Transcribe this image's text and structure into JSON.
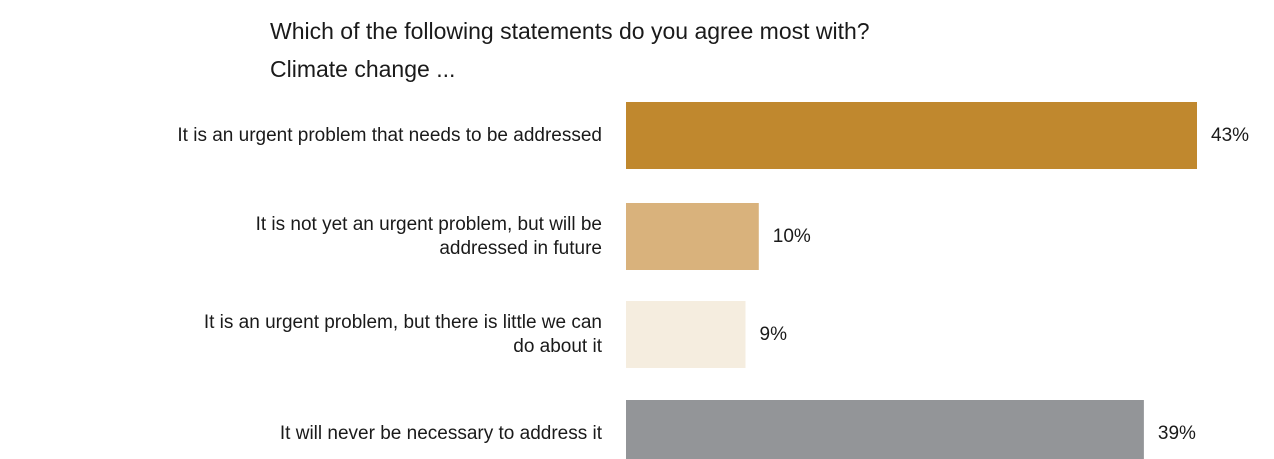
{
  "chart_data": {
    "type": "bar",
    "orientation": "horizontal",
    "title": "Which of the following statements do you agree most with?",
    "subtitle": "Climate change ...",
    "categories": [
      "It is an urgent problem that needs to be addressed",
      "It is not yet an urgent problem, but will be addressed in future",
      "It is an urgent problem, but there is little we can do about it",
      "It will never be necessary to address it"
    ],
    "category_lines": [
      [
        "It is an urgent problem that needs to be addressed"
      ],
      [
        "It is not yet an urgent problem, but will be",
        "addressed in future"
      ],
      [
        "It is an urgent problem, but there is little we can",
        "do about it"
      ],
      [
        "It will never be necessary to address it"
      ]
    ],
    "values": [
      43,
      10,
      9,
      39
    ],
    "value_labels": [
      "43%",
      "10%",
      "9%",
      "39%"
    ],
    "colors": [
      "#C0882E",
      "#D9B27C",
      "#F5EDDF",
      "#939598"
    ],
    "xlim": [
      0,
      43
    ],
    "grid": false,
    "legend": "none"
  }
}
